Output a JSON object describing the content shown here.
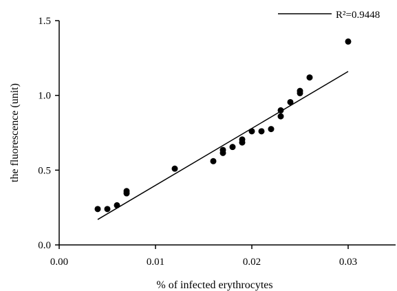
{
  "chart_data": {
    "type": "scatter",
    "title": "",
    "xlabel": "% of infected erythrocytes",
    "ylabel": "the fluorescence (unit)",
    "xlim": [
      0.0,
      0.035
    ],
    "ylim": [
      0.0,
      1.5
    ],
    "x_ticks": [
      0.0,
      0.01,
      0.02,
      0.03
    ],
    "x_tick_labels": [
      "0.00",
      "0.01",
      "0.02",
      "0.03"
    ],
    "y_ticks": [
      0.0,
      0.5,
      1.0,
      1.5
    ],
    "y_tick_labels": [
      "0.0",
      "0.5",
      "1.0",
      "1.5"
    ],
    "grid": false,
    "legend": {
      "position": "top-right",
      "label": "R²=0.9448"
    },
    "points": [
      {
        "x": 0.004,
        "y": 0.24
      },
      {
        "x": 0.005,
        "y": 0.24
      },
      {
        "x": 0.006,
        "y": 0.265
      },
      {
        "x": 0.007,
        "y": 0.345
      },
      {
        "x": 0.007,
        "y": 0.36
      },
      {
        "x": 0.012,
        "y": 0.51
      },
      {
        "x": 0.016,
        "y": 0.56
      },
      {
        "x": 0.017,
        "y": 0.615
      },
      {
        "x": 0.017,
        "y": 0.635
      },
      {
        "x": 0.018,
        "y": 0.655
      },
      {
        "x": 0.019,
        "y": 0.685
      },
      {
        "x": 0.019,
        "y": 0.705
      },
      {
        "x": 0.02,
        "y": 0.76
      },
      {
        "x": 0.021,
        "y": 0.76
      },
      {
        "x": 0.022,
        "y": 0.775
      },
      {
        "x": 0.023,
        "y": 0.86
      },
      {
        "x": 0.023,
        "y": 0.9
      },
      {
        "x": 0.024,
        "y": 0.955
      },
      {
        "x": 0.025,
        "y": 1.015
      },
      {
        "x": 0.025,
        "y": 1.03
      },
      {
        "x": 0.026,
        "y": 1.12
      },
      {
        "x": 0.03,
        "y": 1.36
      }
    ],
    "fit_line": {
      "x": [
        0.004,
        0.03
      ],
      "y": [
        0.17,
        1.16
      ]
    },
    "colors": {
      "points": "#000000",
      "line": "#000000",
      "axes": "#000000"
    }
  }
}
